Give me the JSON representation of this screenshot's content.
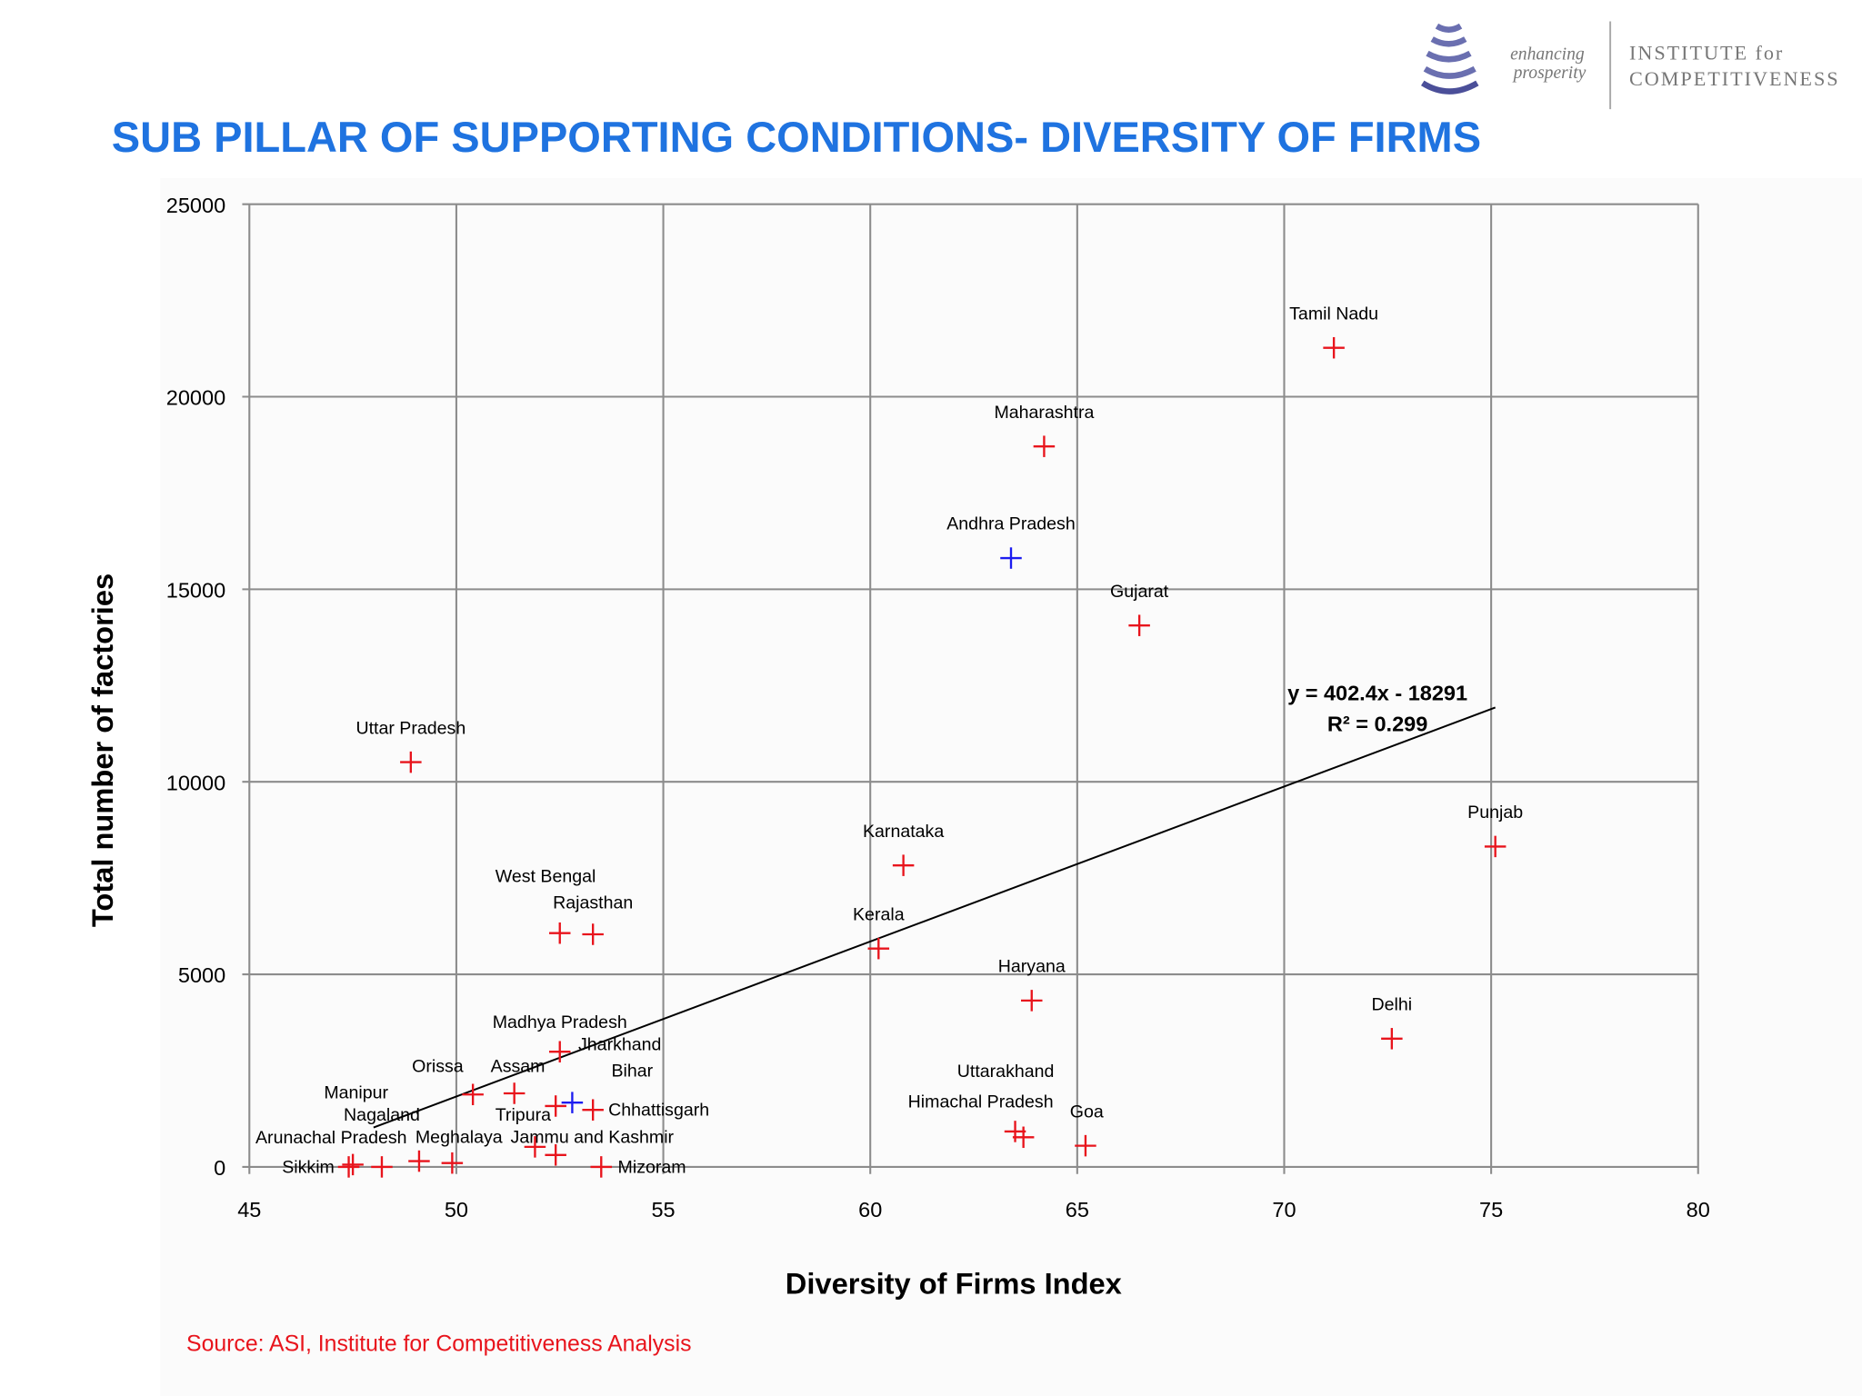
{
  "header": {
    "title": "SUB PILLAR OF SUPPORTING CONDITIONS- DIVERSITY OF FIRMS",
    "logo": {
      "tagline_1": "enhancing",
      "tagline_2": "prosperity",
      "org_1": "INSTITUTE for",
      "org_2": "COMPETITIVENESS"
    }
  },
  "source": "Source: ASI, Institute for Competitiveness Analysis",
  "colors": {
    "title": "#1f73e0",
    "point": "#e8141c",
    "highlight": "#1c1cf0",
    "source": "#e8141c",
    "grid": "#8c8c8c"
  },
  "chart_data": {
    "type": "scatter",
    "title": "",
    "xlabel": "Diversity of Firms Index",
    "ylabel": "Total number of factories",
    "xlim": [
      45,
      80
    ],
    "ylim": [
      0,
      25000
    ],
    "xticks": [
      45,
      50,
      55,
      60,
      65,
      70,
      75,
      80
    ],
    "yticks": [
      0,
      5000,
      10000,
      15000,
      20000,
      25000
    ],
    "grid": true,
    "points": [
      {
        "label": "Tamil Nadu",
        "x": 71.2,
        "y": 21270,
        "highlight": false
      },
      {
        "label": "Maharashtra",
        "x": 64.2,
        "y": 18710,
        "highlight": false
      },
      {
        "label": "Andhra Pradesh",
        "x": 63.4,
        "y": 15810,
        "highlight": true
      },
      {
        "label": "Gujarat",
        "x": 66.5,
        "y": 14060,
        "highlight": false
      },
      {
        "label": "Uttar Pradesh",
        "x": 48.9,
        "y": 10510,
        "highlight": false
      },
      {
        "label": "Punjab",
        "x": 75.1,
        "y": 8320,
        "highlight": false
      },
      {
        "label": "Karnataka",
        "x": 60.8,
        "y": 7830,
        "highlight": false
      },
      {
        "label": "West Bengal",
        "x": 52.5,
        "y": 6070,
        "highlight": false
      },
      {
        "label": "Rajasthan",
        "x": 53.3,
        "y": 6040,
        "highlight": false
      },
      {
        "label": "Kerala",
        "x": 60.2,
        "y": 5670,
        "highlight": false
      },
      {
        "label": "Haryana",
        "x": 63.9,
        "y": 4320,
        "highlight": false
      },
      {
        "label": "Delhi",
        "x": 72.6,
        "y": 3330,
        "highlight": false
      },
      {
        "label": "Madhya Pradesh",
        "x": 52.5,
        "y": 2990,
        "highlight": false
      },
      {
        "label": "Jharkhand",
        "x": 52.4,
        "y": 1580,
        "highlight": false
      },
      {
        "label": "Bihar",
        "x": 52.8,
        "y": 1670,
        "highlight": true
      },
      {
        "label": "Chhattisgarh",
        "x": 53.3,
        "y": 1480,
        "highlight": false
      },
      {
        "label": "Orissa",
        "x": 50.4,
        "y": 1880,
        "highlight": false
      },
      {
        "label": "Assam",
        "x": 51.4,
        "y": 1910,
        "highlight": false
      },
      {
        "label": "Tripura",
        "x": 51.9,
        "y": 520,
        "highlight": false
      },
      {
        "label": "Jammu and Kashmir",
        "x": 52.4,
        "y": 310,
        "highlight": false
      },
      {
        "label": "Mizoram",
        "x": 53.5,
        "y": 0,
        "highlight": false
      },
      {
        "label": "Sikkim",
        "x": 47.4,
        "y": 0,
        "highlight": false
      },
      {
        "label": "Arunachal Pradesh",
        "x": 47.5,
        "y": 60,
        "highlight": false
      },
      {
        "label": "Nagaland",
        "x": 48.2,
        "y": 0,
        "highlight": false
      },
      {
        "label": "Manipur",
        "x": 49.1,
        "y": 150,
        "highlight": false
      },
      {
        "label": "Meghalaya",
        "x": 49.9,
        "y": 100,
        "highlight": false
      },
      {
        "label": "Uttarakhand",
        "x": 63.5,
        "y": 920,
        "highlight": false
      },
      {
        "label": "Himachal Pradesh",
        "x": 63.7,
        "y": 770,
        "highlight": false
      },
      {
        "label": "Goa",
        "x": 65.2,
        "y": 550,
        "highlight": false
      }
    ],
    "trendline": {
      "slope": 402.4,
      "intercept": -18291,
      "x_range": [
        48,
        75.1
      ],
      "equation": "y = 402.4x - 18291",
      "r2": "R² = 0.299"
    }
  }
}
